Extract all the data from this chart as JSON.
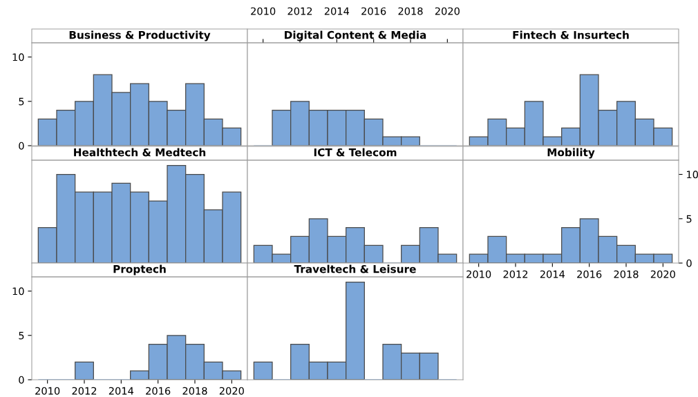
{
  "chart_data": [
    {
      "type": "histogram",
      "title": "Business & Productivity",
      "bins": [
        2009.5,
        2010.5,
        2011.5,
        2012.5,
        2013.5,
        2014.5,
        2015.5,
        2016.5,
        2017.5,
        2018.5,
        2019.5,
        2020.5
      ],
      "values": [
        3,
        4,
        5,
        8,
        6,
        7,
        5,
        4,
        7,
        3,
        2
      ],
      "color": "#7ba6d9",
      "xlim": [
        2009.15,
        2020.85
      ],
      "xticks": [
        2010,
        2012,
        2014,
        2016,
        2018,
        2020
      ],
      "ylim": [
        0,
        11.6
      ],
      "yticks": [
        0,
        5,
        10
      ],
      "tick_labels": "y"
    },
    {
      "type": "histogram",
      "title": "Digital Content & Media",
      "bins": [
        2009.5,
        2010.5,
        2011.5,
        2012.5,
        2013.5,
        2014.5,
        2015.5,
        2016.5,
        2017.5,
        2018.5,
        2019.5,
        2020.5
      ],
      "values": [
        0,
        4,
        5,
        4,
        4,
        4,
        3,
        1,
        1,
        0,
        0
      ],
      "color": "#7ba6d9",
      "xlim": [
        2009.15,
        2020.85
      ],
      "xticks": [
        2010,
        2012,
        2014,
        2016,
        2018,
        2020
      ],
      "ylim": [
        0,
        11.6
      ],
      "yticks": [
        0,
        5,
        10
      ],
      "tick_labels": "x"
    },
    {
      "type": "histogram",
      "title": "Fintech & Insurtech",
      "bins": [
        2009.5,
        2010.5,
        2011.5,
        2012.5,
        2013.5,
        2014.5,
        2015.5,
        2016.5,
        2017.5,
        2018.5,
        2019.5,
        2020.5
      ],
      "values": [
        1,
        3,
        2,
        5,
        1,
        2,
        8,
        4,
        5,
        3,
        2
      ],
      "color": "#7ba6d9",
      "xlim": [
        2009.15,
        2020.85
      ],
      "xticks": [
        2010,
        2012,
        2014,
        2016,
        2018,
        2020
      ],
      "ylim": [
        0,
        11.6
      ],
      "yticks": [
        0,
        5,
        10
      ],
      "tick_labels": false
    },
    {
      "type": "histogram",
      "title": "Healthtech & Medtech",
      "bins": [
        2009.5,
        2010.5,
        2011.5,
        2012.5,
        2013.5,
        2014.5,
        2015.5,
        2016.5,
        2017.5,
        2018.5,
        2019.5,
        2020.5
      ],
      "values": [
        4,
        10,
        8,
        8,
        9,
        8,
        7,
        11,
        10,
        6,
        8
      ],
      "color": "#7ba6d9",
      "xlim": [
        2009.15,
        2020.85
      ],
      "xticks": [
        2010,
        2012,
        2014,
        2016,
        2018,
        2020
      ],
      "ylim": [
        0,
        11.6
      ],
      "yticks": [
        0,
        5,
        10
      ],
      "tick_labels": false
    },
    {
      "type": "histogram",
      "title": "ICT & Telecom",
      "bins": [
        2009.5,
        2010.5,
        2011.5,
        2012.5,
        2013.5,
        2014.5,
        2015.5,
        2016.5,
        2017.5,
        2018.5,
        2019.5,
        2020.5
      ],
      "values": [
        2,
        1,
        3,
        5,
        3,
        4,
        2,
        0,
        2,
        4,
        1
      ],
      "color": "#7ba6d9",
      "xlim": [
        2009.15,
        2020.85
      ],
      "xticks": [
        2010,
        2012,
        2014,
        2016,
        2018,
        2020
      ],
      "ylim": [
        0,
        11.6
      ],
      "yticks": [
        0,
        5,
        10
      ],
      "tick_labels": false
    },
    {
      "type": "histogram",
      "title": "Mobility",
      "bins": [
        2009.5,
        2010.5,
        2011.5,
        2012.5,
        2013.5,
        2014.5,
        2015.5,
        2016.5,
        2017.5,
        2018.5,
        2019.5,
        2020.5
      ],
      "values": [
        1,
        3,
        1,
        1,
        1,
        4,
        5,
        3,
        2,
        1,
        1
      ],
      "color": "#7ba6d9",
      "xlim": [
        2009.15,
        2020.85
      ],
      "xticks": [
        2010,
        2012,
        2014,
        2016,
        2018,
        2020
      ],
      "ylim": [
        0,
        11.6
      ],
      "yticks": [
        0,
        5,
        10
      ]
    },
    {
      "type": "histogram",
      "title": "Proptech",
      "bins": [
        2009.5,
        2010.5,
        2011.5,
        2012.5,
        2013.5,
        2014.5,
        2015.5,
        2016.5,
        2017.5,
        2018.5,
        2019.5,
        2020.5
      ],
      "values": [
        0,
        0,
        2,
        0,
        0,
        1,
        4,
        5,
        4,
        2,
        1
      ],
      "color": "#7ba6d9",
      "xlim": [
        2009.15,
        2020.85
      ],
      "xticks": [
        2010,
        2012,
        2014,
        2016,
        2018,
        2020
      ],
      "ylim": [
        0,
        11.6
      ],
      "yticks": [
        0,
        5,
        10
      ]
    },
    {
      "type": "histogram",
      "title": "Traveltech & Leisure",
      "bins": [
        2009.5,
        2010.5,
        2011.5,
        2012.5,
        2013.5,
        2014.5,
        2015.5,
        2016.5,
        2017.5,
        2018.5,
        2019.5,
        2020.5
      ],
      "values": [
        2,
        0,
        4,
        2,
        2,
        11,
        0,
        4,
        3,
        3,
        0
      ],
      "color": "#7ba6d9",
      "xlim": [
        2009.15,
        2020.85
      ],
      "xticks": [
        2010,
        2012,
        2014,
        2016,
        2018,
        2020
      ],
      "ylim": [
        0,
        11.6
      ],
      "yticks": [
        0,
        5,
        10
      ],
      "tick_labels": false
    }
  ]
}
